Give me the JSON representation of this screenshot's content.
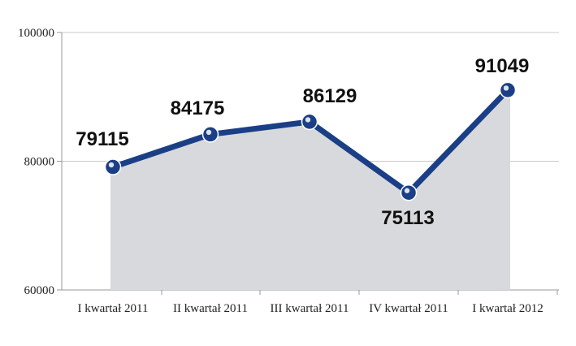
{
  "chart_data": {
    "type": "line",
    "categories": [
      "I kwartał 2011",
      "II kwartał 2011",
      "III kwartał 2011",
      "IV kwartał 2011",
      "I kwartał 2012"
    ],
    "series": [
      {
        "values": [
          79115,
          84175,
          86129,
          75113,
          91049
        ]
      }
    ],
    "data_labels": [
      "79115",
      "84175",
      "86129",
      "75113",
      "91049"
    ],
    "y_ticks": [
      "60000",
      "80000",
      "100000"
    ],
    "ylim": [
      60000,
      100000
    ],
    "grid": true,
    "area_fill": true,
    "colors": {
      "line": "#1b3f86",
      "area": "#d7d9dc",
      "grid": "#c8c8c8",
      "axis": "#9a9a9a"
    }
  }
}
